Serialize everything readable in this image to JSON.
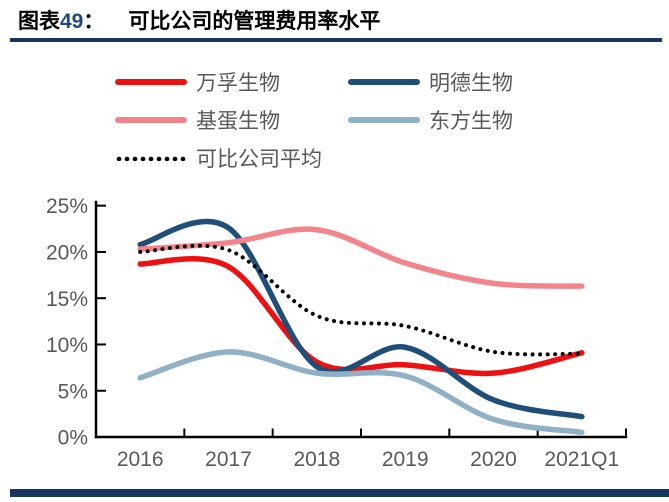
{
  "header": {
    "label_prefix": "图表",
    "label_number": "49",
    "label_colon": "：",
    "title": "可比公司的管理费用率水平"
  },
  "chart_data": {
    "type": "line",
    "title": "可比公司的管理费用率水平",
    "categories": [
      "2016",
      "2017",
      "2018",
      "2019",
      "2020",
      "2021Q1"
    ],
    "unit": "percent",
    "ylim": [
      0,
      25
    ],
    "y_tick_step": 5,
    "grid": false,
    "legend_position": "top-left",
    "line_style": "smooth",
    "series": [
      {
        "name": "万孚生物",
        "color": "#ee1111",
        "style": "solid",
        "values": [
          18.7,
          18.4,
          8.1,
          7.8,
          6.9,
          9.1
        ]
      },
      {
        "name": "明德生物",
        "color": "#1f4e79",
        "style": "solid",
        "values": [
          20.8,
          22.6,
          7.6,
          9.7,
          4.0,
          2.2
        ]
      },
      {
        "name": "基蛋生物",
        "color": "#f4848c",
        "style": "solid",
        "values": [
          20.3,
          21.0,
          22.4,
          18.8,
          16.6,
          16.3
        ]
      },
      {
        "name": "东方生物",
        "color": "#90b0c6",
        "style": "solid",
        "values": [
          6.4,
          9.2,
          6.9,
          6.6,
          1.9,
          0.5
        ]
      },
      {
        "name": "可比公司平均",
        "color": "#000000",
        "style": "dotted",
        "values": [
          20.0,
          20.2,
          13.1,
          12.0,
          9.2,
          9.0
        ]
      }
    ]
  },
  "axes": {
    "y_ticks": [
      "25%",
      "20%",
      "15%",
      "10%",
      "5%",
      "0%"
    ],
    "x_ticks": [
      "2016",
      "2017",
      "2018",
      "2019",
      "2020",
      "2021Q1"
    ]
  }
}
